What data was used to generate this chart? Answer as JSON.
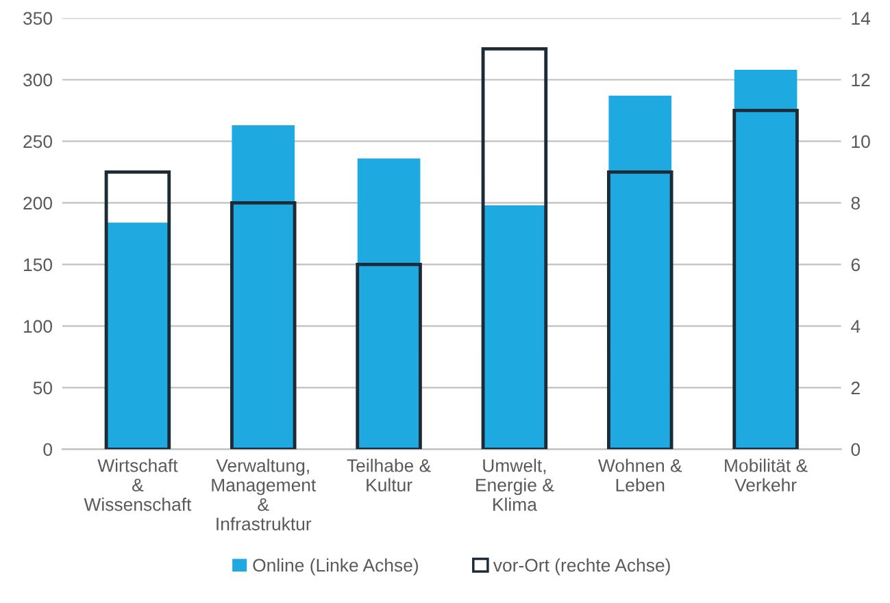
{
  "chart_data": {
    "type": "bar",
    "categories": [
      "Wirtschaft\n&\nWissenschaft",
      "Verwaltung,\nManagement\n&\nInfrastruktur",
      "Teilhabe &\nKultur",
      "Umwelt,\nEnergie &\nKlima",
      "Wohnen &\nLeben",
      "Mobilität &\nVerkehr"
    ],
    "series": [
      {
        "name": "Online (Linke Achse)",
        "color": "#1eaae1",
        "values": [
          184,
          263,
          236,
          198,
          287,
          308
        ]
      },
      {
        "name": "vor-Ort (rechte Achse)",
        "color": "#1c2b36",
        "axis": "y2",
        "values": [
          9,
          8,
          6,
          13,
          9,
          11
        ]
      }
    ],
    "ylim": [
      0,
      350
    ],
    "yticks": [
      0,
      50,
      100,
      150,
      200,
      250,
      300,
      350
    ],
    "y2lim": [
      0,
      14
    ],
    "y2ticks": [
      0,
      2,
      4,
      6,
      8,
      10,
      12,
      14
    ],
    "grid": "y",
    "legend": "bottom"
  }
}
